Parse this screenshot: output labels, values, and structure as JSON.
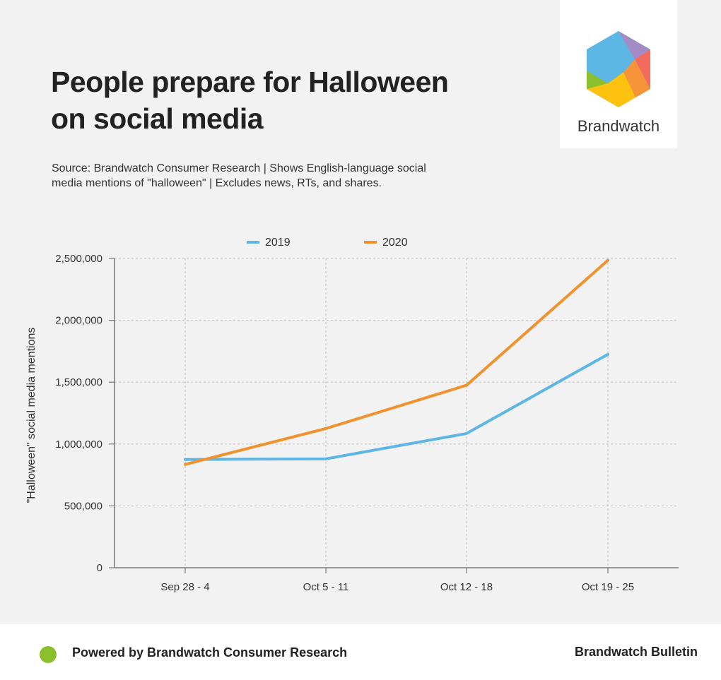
{
  "header": {
    "title_lines": [
      "People prepare for Halloween",
      "on social media"
    ],
    "subtitle_lines": [
      "Source: Brandwatch Consumer Research | Shows English-language social",
      "media mentions of \"halloween\" | Excludes news, RTs, and shares."
    ]
  },
  "logo": {
    "text": "Brandwatch",
    "icon": "brandwatch-hexagon-logo"
  },
  "footer": {
    "left_text": "Powered by Brandwatch Consumer Research",
    "right_text": "Brandwatch Bulletin",
    "dot_color": "#8bbf2c"
  },
  "chart_data": {
    "type": "line",
    "title": "People prepare for Halloween on social media",
    "xlabel": "",
    "ylabel": "\"Halloween\" social media mentions",
    "categories": [
      "Sep 28 - 4",
      "Oct 5 - 11",
      "Oct 12 - 18",
      "Oct 19 - 25"
    ],
    "series": [
      {
        "name": "2019",
        "color": "#5db6e3",
        "values": [
          875000,
          880000,
          1085000,
          1725000
        ]
      },
      {
        "name": "2020",
        "color": "#f0922e",
        "values": [
          835000,
          1125000,
          1475000,
          2485000
        ]
      }
    ],
    "ylim": [
      0,
      2500000
    ],
    "yticks": [
      0,
      500000,
      1000000,
      1500000,
      2000000,
      2500000
    ],
    "ytick_labels": [
      "0",
      "500,000",
      "1,000,000",
      "1,500,000",
      "2,000,000",
      "2,500,000"
    ],
    "grid": true,
    "legend_position": "top-center"
  }
}
